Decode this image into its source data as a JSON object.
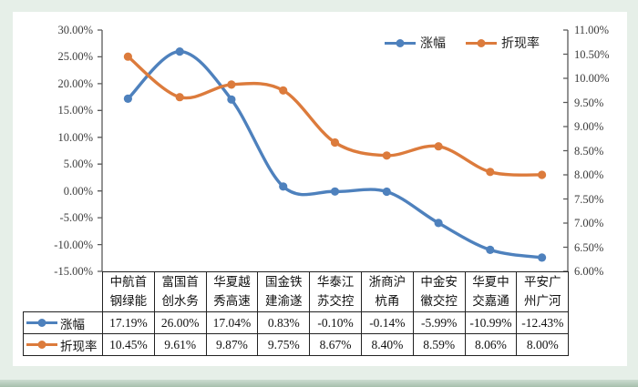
{
  "colors": {
    "background": "#e6efe8",
    "card": "#ffffff",
    "bottom_strip_top": "#ccdcd1",
    "bottom_strip_bottom": "#a6bfac",
    "axis_line": "#595959",
    "axis_text": "#3b3b3b",
    "table_border": "#222222",
    "series_rise": "#4e81bd",
    "series_discount": "#dc7b3c"
  },
  "chart_data": {
    "type": "line",
    "title": "",
    "smooth_lines": true,
    "grid": false,
    "legend_position": "top-center",
    "categories": [
      "中航首钢绿能",
      "富国首创水务",
      "华夏越秀高速",
      "国金铁建渝遂",
      "华泰江苏交控",
      "浙商沪杭甬",
      "中金安徽交控",
      "华夏中交嘉通",
      "平安广州广河"
    ],
    "categories_display": [
      "中航首\n钢绿能",
      "富国首\n创水务",
      "华夏越\n秀高速",
      "国金铁\n建渝遂",
      "华泰江\n苏交控",
      "浙商沪\n杭甬",
      "中金安\n徽交控",
      "华夏中\n交嘉通",
      "平安广\n州广河"
    ],
    "series": [
      {
        "name": "涨幅",
        "axis": "left",
        "color": "#4e81bd",
        "values": [
          17.19,
          26.0,
          17.04,
          0.83,
          -0.1,
          -0.14,
          -5.99,
          -10.99,
          -12.43
        ],
        "labels": [
          "17.19%",
          "26.00%",
          "17.04%",
          "0.83%",
          "-0.10%",
          "-0.14%",
          "-5.99%",
          "-10.99%",
          "-12.43%"
        ]
      },
      {
        "name": "折现率",
        "axis": "right",
        "color": "#dc7b3c",
        "values": [
          10.45,
          9.61,
          9.87,
          9.75,
          8.67,
          8.4,
          8.59,
          8.06,
          8.0
        ],
        "labels": [
          "10.45%",
          "9.61%",
          "9.87%",
          "9.75%",
          "8.67%",
          "8.40%",
          "8.59%",
          "8.06%",
          "8.00%"
        ]
      }
    ],
    "left_axis": {
      "min": -15,
      "max": 30,
      "step": 5,
      "tick_labels": [
        "30.00%",
        "25.00%",
        "20.00%",
        "15.00%",
        "10.00%",
        "5.00%",
        "0.00%",
        "-5.00%",
        "-10.00%",
        "-15.00%"
      ]
    },
    "right_axis": {
      "min": 6,
      "max": 11,
      "step": 0.5,
      "tick_labels": [
        "11.00%",
        "10.50%",
        "10.00%",
        "9.50%",
        "9.00%",
        "8.50%",
        "8.00%",
        "7.50%",
        "7.00%",
        "6.50%",
        "6.00%"
      ]
    }
  }
}
